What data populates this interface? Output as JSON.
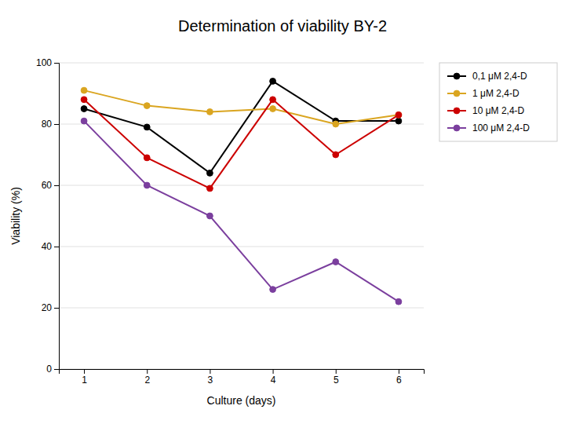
{
  "chart_data": {
    "type": "line",
    "title": "Determination of viability BY-2",
    "xlabel": "Culture (days)",
    "ylabel": "Viability (%)",
    "x": [
      1,
      2,
      3,
      4,
      5,
      6
    ],
    "series": [
      {
        "name": "0,1 μM 2,4-D",
        "color": "#000000",
        "values": [
          85,
          79,
          64,
          94,
          81,
          81
        ]
      },
      {
        "name": "1 μM 2,4-D",
        "color": "#DAA520",
        "values": [
          91,
          86,
          84,
          85,
          80,
          83
        ]
      },
      {
        "name": "10 μM 2,4-D",
        "color": "#CC0000",
        "values": [
          88,
          69,
          59,
          88,
          70,
          83
        ]
      },
      {
        "name": "100 μM 2,4-D",
        "color": "#7B3F9E",
        "values": [
          81,
          60,
          50,
          26,
          35,
          22
        ]
      }
    ],
    "xlim": [
      0.6,
      6.4
    ],
    "ylim": [
      0,
      100
    ],
    "xticks": [
      1,
      2,
      3,
      4,
      5,
      6
    ],
    "yticks": [
      0,
      20,
      40,
      60,
      80,
      100
    ],
    "grid": true,
    "legend": "right",
    "marker": "circle"
  }
}
